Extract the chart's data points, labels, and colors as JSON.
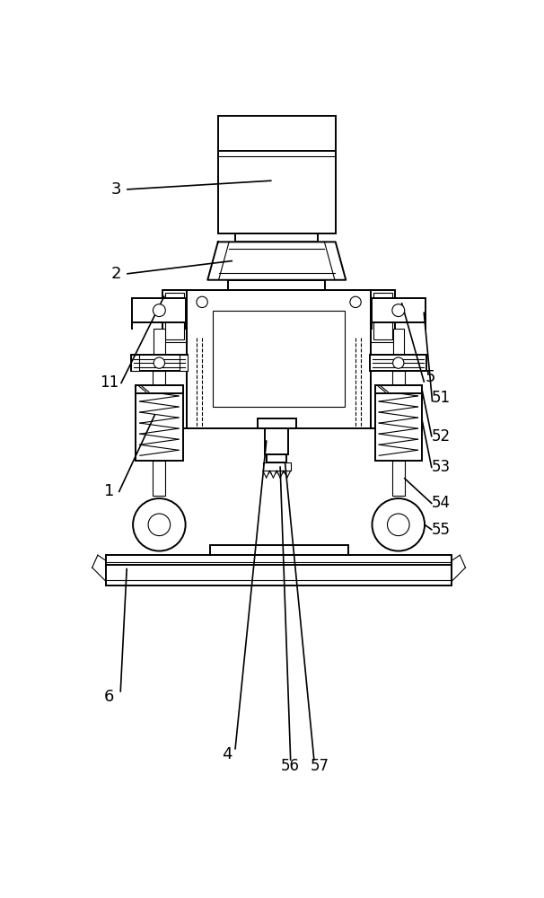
{
  "line_color": "#000000",
  "bg_color": "#ffffff",
  "lw": 1.4,
  "tlw": 0.8,
  "figsize": [
    6.06,
    10.0
  ],
  "dpi": 100,
  "label_fs": 12
}
